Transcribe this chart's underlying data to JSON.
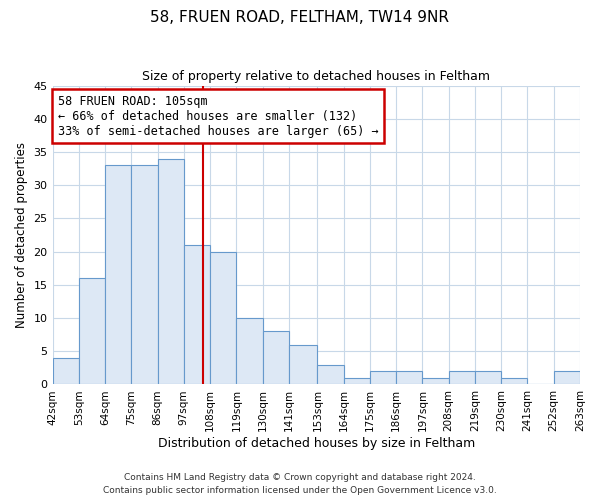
{
  "title": "58, FRUEN ROAD, FELTHAM, TW14 9NR",
  "subtitle": "Size of property relative to detached houses in Feltham",
  "xlabel": "Distribution of detached houses by size in Feltham",
  "ylabel": "Number of detached properties",
  "footer_lines": [
    "Contains HM Land Registry data © Crown copyright and database right 2024.",
    "Contains public sector information licensed under the Open Government Licence v3.0."
  ],
  "bar_edges": [
    42,
    53,
    64,
    75,
    86,
    97,
    108,
    119,
    130,
    141,
    153,
    164,
    175,
    186,
    197,
    208,
    219,
    230,
    241,
    252,
    263
  ],
  "bar_heights": [
    4,
    16,
    33,
    33,
    34,
    21,
    20,
    10,
    8,
    6,
    3,
    1,
    2,
    2,
    1,
    2,
    2,
    1,
    0,
    2
  ],
  "bar_color": "#dde8f5",
  "bar_edgecolor": "#6699cc",
  "tick_labels": [
    "42sqm",
    "53sqm",
    "64sqm",
    "75sqm",
    "86sqm",
    "97sqm",
    "108sqm",
    "119sqm",
    "130sqm",
    "141sqm",
    "153sqm",
    "164sqm",
    "175sqm",
    "186sqm",
    "197sqm",
    "208sqm",
    "219sqm",
    "230sqm",
    "241sqm",
    "252sqm",
    "263sqm"
  ],
  "ylim": [
    0,
    45
  ],
  "yticks": [
    0,
    5,
    10,
    15,
    20,
    25,
    30,
    35,
    40,
    45
  ],
  "property_line_x": 105,
  "property_line_color": "#cc0000",
  "annotation_title": "58 FRUEN ROAD: 105sqm",
  "annotation_line1": "← 66% of detached houses are smaller (132)",
  "annotation_line2": "33% of semi-detached houses are larger (65) →",
  "annotation_box_color": "#cc0000",
  "background_color": "#ffffff",
  "grid_color": "#c8d8e8"
}
